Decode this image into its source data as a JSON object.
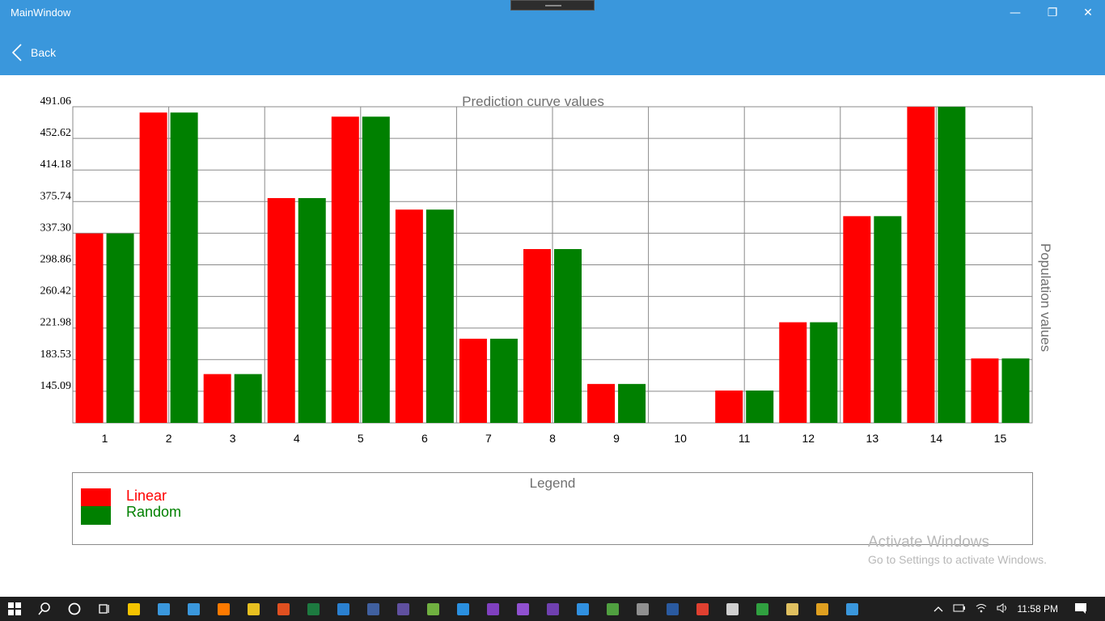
{
  "window": {
    "title": "MainWindow",
    "minimize_glyph": "—",
    "maximize_glyph": "❐",
    "close_glyph": "✕"
  },
  "nav": {
    "back_label": "Back"
  },
  "chart_data": {
    "type": "bar",
    "title": "Prediction curve values",
    "xlabel": "",
    "ylabel": "Population values",
    "categories": [
      "1",
      "2",
      "3",
      "4",
      "5",
      "6",
      "7",
      "8",
      "9",
      "10",
      "11",
      "12",
      "13",
      "14",
      "15"
    ],
    "y_tick_labels": [
      "491.06",
      "452.62",
      "414.18",
      "375.74",
      "337.30",
      "298.86",
      "260.42",
      "221.98",
      "183.53",
      "145.09"
    ],
    "ylim": [
      106.65,
      491.06
    ],
    "grid": true,
    "legend": "bottom",
    "series": [
      {
        "name": "Linear",
        "color": "#ff0000",
        "values": [
          337,
          484,
          166,
          380,
          479,
          366,
          209,
          318,
          154,
          106.65,
          146,
          229,
          358,
          491,
          185
        ]
      },
      {
        "name": "Random",
        "color": "#008000",
        "values": [
          337,
          484,
          166,
          380,
          479,
          366,
          209,
          318,
          154,
          106.65,
          146,
          229,
          358,
          491,
          185
        ]
      }
    ]
  },
  "legend": {
    "title": "Legend",
    "items": [
      {
        "label": "Linear",
        "color": "#ff0000"
      },
      {
        "label": "Random",
        "color": "#008000"
      }
    ]
  },
  "watermark": {
    "title": "Activate Windows",
    "subtitle": "Go to Settings to activate Windows."
  },
  "taskbar": {
    "clock": "11:58 PM",
    "apps": [
      {
        "icon": "file-explorer-icon",
        "color": "#f5c400"
      },
      {
        "icon": "store-icon",
        "color": "#3a97dc"
      },
      {
        "icon": "mail-icon",
        "color": "#3a97dc"
      },
      {
        "icon": "firefox-icon",
        "color": "#ff7a00"
      },
      {
        "icon": "chrome-icon",
        "color": "#e8c020"
      },
      {
        "icon": "app-icon",
        "color": "#e05020"
      },
      {
        "icon": "excel-icon",
        "color": "#1d7a40"
      },
      {
        "icon": "edge-icon",
        "color": "#2a80d0"
      },
      {
        "icon": "app-icon",
        "color": "#4060a0"
      },
      {
        "icon": "eclipse-icon",
        "color": "#6050a0"
      },
      {
        "icon": "android-studio-icon",
        "color": "#70b040"
      },
      {
        "icon": "vscode-icon",
        "color": "#2a90e0"
      },
      {
        "icon": "visual-studio-icon",
        "color": "#8040c0"
      },
      {
        "icon": "visual-studio-icon",
        "color": "#9050d0"
      },
      {
        "icon": "visual-studio-icon",
        "color": "#7040b0"
      },
      {
        "icon": "app-icon",
        "color": "#3090e0"
      },
      {
        "icon": "app-icon",
        "color": "#50a040"
      },
      {
        "icon": "app-icon",
        "color": "#909090"
      },
      {
        "icon": "powershell-icon",
        "color": "#2a5aa0"
      },
      {
        "icon": "app-icon",
        "color": "#e04030"
      },
      {
        "icon": "app-icon",
        "color": "#d0d0d0"
      },
      {
        "icon": "app-icon",
        "color": "#30a040"
      },
      {
        "icon": "app-icon",
        "color": "#e0c060"
      },
      {
        "icon": "app-icon",
        "color": "#e0a020"
      },
      {
        "icon": "app-icon",
        "color": "#3a97dc"
      }
    ]
  }
}
